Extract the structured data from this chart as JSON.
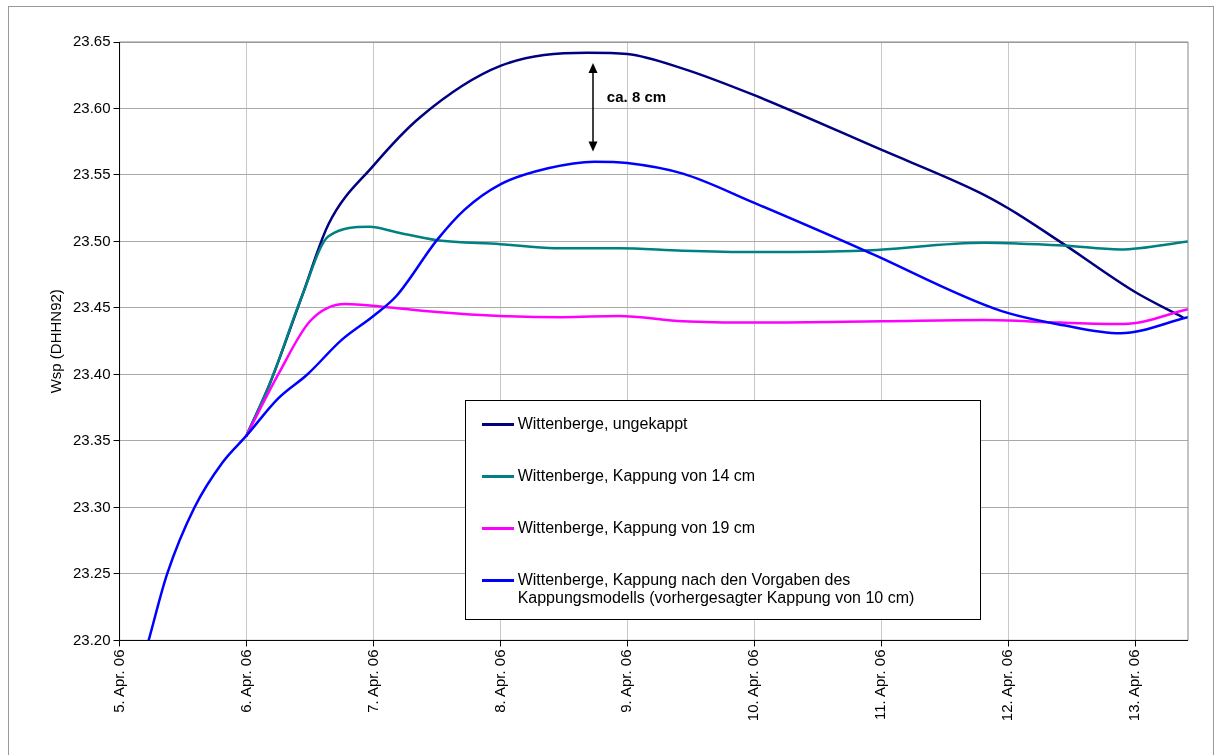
{
  "chart_data": {
    "type": "line",
    "ylabel": "Wsp (DHHN92)",
    "xlim": [
      "--04-05T00:00",
      "--04-13T10:00"
    ],
    "xticks": [
      {
        "value": "--04-05T00:00",
        "label": "5. Apr. 06"
      },
      {
        "value": "--04-06T00:00",
        "label": "6. Apr. 06"
      },
      {
        "value": "--04-07T00:00",
        "label": "7. Apr. 06"
      },
      {
        "value": "--04-08T00:00",
        "label": "8. Apr. 06"
      },
      {
        "value": "--04-09T00:00",
        "label": "9. Apr. 06"
      },
      {
        "value": "--04-10T00:00",
        "label": "10. Apr. 06"
      },
      {
        "value": "--04-11T00:00",
        "label": "11. Apr. 06"
      },
      {
        "value": "--04-12T00:00",
        "label": "12. Apr. 06"
      },
      {
        "value": "--04-13T00:00",
        "label": "13. Apr. 06"
      }
    ],
    "ylim": [
      23.2,
      23.65
    ],
    "yticks": [
      {
        "value": 23.2,
        "label": "23.20"
      },
      23.25,
      {
        "value": 23.3,
        "label": "23.30"
      },
      23.35,
      {
        "value": 23.4,
        "label": "23.40"
      },
      23.45,
      {
        "value": 23.5,
        "label": "23.50"
      },
      23.55,
      {
        "value": 23.6,
        "label": "23.60"
      },
      23.65
    ],
    "grid": true,
    "legend": "bottom",
    "marker": "none",
    "line_style": "solid",
    "annotations": [
      "ca. 8 cm"
    ],
    "series": [
      {
        "name": "Wittenberge, ungekappt",
        "color": "#000080",
        "x": [
          "--04-06T00:00",
          "--04-06T04:30",
          "--04-06T10:30",
          "--04-06T15:30",
          "--04-07T00:00",
          "--04-07T09:00",
          "--04-08T00:00",
          "--04-08T16:30",
          "--04-09T00:00",
          "--04-09T10:30",
          "--04-10T00:00",
          "--04-11T00:00",
          "--04-11T18:30",
          "--04-12T00:00",
          "--04-12T10:30",
          "--04-13T00:00",
          "--04-13T09:00"
        ],
        "values": [
          23.354,
          23.394,
          23.459,
          23.513,
          23.557,
          23.594,
          23.632,
          23.642,
          23.641,
          23.63,
          23.61,
          23.569,
          23.537,
          23.525,
          23.498,
          23.462,
          23.443
        ]
      },
      {
        "name": "Wittenberge, Kappung von 14 cm",
        "color": "#008080",
        "x": [
          "--04-06T00:00",
          "--04-06T04:30",
          "--04-06T10:30",
          "--04-06T15:30",
          "--04-06T23:15",
          "--04-07T04:20",
          "--04-07T12:00",
          "--04-08T00:00",
          "--04-08T10:20",
          "--04-08T22:20",
          "--04-09T10:30",
          "--04-10T00:00",
          "--04-10T20:10",
          "--04-11T19:30",
          "--04-12T10:30",
          "--04-12T21:10",
          "--04-13T10:00"
        ],
        "values": [
          23.354,
          23.394,
          23.459,
          23.504,
          23.511,
          23.507,
          23.501,
          23.498,
          23.495,
          23.495,
          23.493,
          23.492,
          23.493,
          23.499,
          23.497,
          23.494,
          23.5
        ]
      },
      {
        "name": "Wittenberge, Kappung von 19 cm",
        "color": "#ff00ff",
        "x": [
          "--04-06T00:00",
          "--04-06T06:00",
          "--04-06T12:00",
          "--04-06T18:40",
          "--04-07T01:40",
          "--04-07T12:00",
          "--04-08T00:00",
          "--04-08T11:45",
          "--04-08T22:20",
          "--04-09T10:30",
          "--04-10T00:00",
          "--04-11T00:00",
          "--04-11T19:30",
          "--04-12T09:50",
          "--04-12T21:50",
          "--04-13T10:00"
        ],
        "values": [
          23.354,
          23.4,
          23.44,
          23.453,
          23.451,
          23.447,
          23.444,
          23.443,
          23.444,
          23.44,
          23.439,
          23.44,
          23.441,
          23.439,
          23.438,
          23.449
        ]
      },
      {
        "name": "Wittenberge, Kappung nach den Vorgaben des Kappungsmodells (vorhergesagter Kappung von 10 cm)",
        "color": "#0000ff",
        "x": [
          "--04-05T05:30",
          "--04-05T09:00",
          "--04-05T14:10",
          "--04-05T19:30",
          "--04-06T00:00",
          "--04-06T06:00",
          "--04-06T11:30",
          "--04-06T18:00",
          "--04-07T00:00",
          "--04-07T04:20",
          "--04-07T12:00",
          "--04-07T17:15",
          "--04-08T00:00",
          "--04-08T09:00",
          "--04-08T17:45",
          "--04-09T00:00",
          "--04-09T10:30",
          "--04-10T00:00",
          "--04-10T21:00",
          "--04-11T22:30",
          "--04-12T10:30",
          "--04-12T21:10",
          "--04-13T10:00"
        ],
        "values": [
          23.2,
          23.25,
          23.3,
          23.334,
          23.354,
          23.382,
          23.4,
          23.426,
          23.444,
          23.459,
          23.501,
          23.524,
          23.543,
          23.555,
          23.56,
          23.559,
          23.551,
          23.529,
          23.493,
          23.448,
          23.437,
          23.431,
          23.443
        ]
      }
    ]
  }
}
